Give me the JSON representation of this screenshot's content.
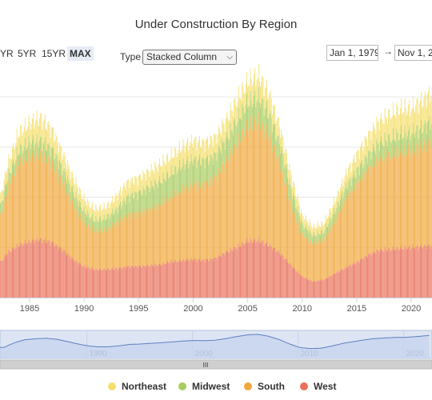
{
  "title": "Under Construction By Region",
  "range_buttons": [
    {
      "label": "YR",
      "active": false
    },
    {
      "label": "5YR",
      "active": false
    },
    {
      "label": "15YR",
      "active": false
    },
    {
      "label": "MAX",
      "active": true
    }
  ],
  "type_selector": {
    "label": "Type",
    "selected": "Stacked Column"
  },
  "date_range": {
    "from": "Jan 1, 1979",
    "arrow": "→",
    "to": "Nov 1, 2"
  },
  "navigator": {
    "handle": "III"
  },
  "chart_data": {
    "type": "bar",
    "stacked": true,
    "title": "Under Construction By Region",
    "xlabel": "",
    "ylabel": "",
    "legend_position": "bottom",
    "grid": true,
    "x_ticks": [
      "1985",
      "1990",
      "1995",
      "2000",
      "2005",
      "2010",
      "2015",
      "2020"
    ],
    "navigator_ticks": [
      "1990",
      "2000",
      "2010",
      "2020"
    ],
    "x_range": [
      1982.0,
      2022.3
    ],
    "colors": {
      "Northeast": "#f5df6e",
      "Midwest": "#a8cc60",
      "South": "#f0a83c",
      "West": "#e8705a"
    },
    "series": [
      {
        "name": "West",
        "color": "#e8705a",
        "values": [
          [
            1982.0,
            0.3
          ],
          [
            1983.0,
            0.45
          ],
          [
            1984.0,
            0.52
          ],
          [
            1985.0,
            0.56
          ],
          [
            1986.0,
            0.58
          ],
          [
            1987.0,
            0.55
          ],
          [
            1988.0,
            0.48
          ],
          [
            1989.0,
            0.38
          ],
          [
            1990.0,
            0.31
          ],
          [
            1991.0,
            0.28
          ],
          [
            1992.0,
            0.28
          ],
          [
            1993.0,
            0.29
          ],
          [
            1994.0,
            0.31
          ],
          [
            1995.0,
            0.31
          ],
          [
            1996.0,
            0.32
          ],
          [
            1997.0,
            0.33
          ],
          [
            1998.0,
            0.36
          ],
          [
            1999.0,
            0.37
          ],
          [
            2000.0,
            0.38
          ],
          [
            2001.0,
            0.37
          ],
          [
            2002.0,
            0.39
          ],
          [
            2003.0,
            0.45
          ],
          [
            2004.0,
            0.5
          ],
          [
            2005.0,
            0.56
          ],
          [
            2006.0,
            0.57
          ],
          [
            2007.0,
            0.52
          ],
          [
            2008.0,
            0.44
          ],
          [
            2009.0,
            0.32
          ],
          [
            2010.0,
            0.21
          ],
          [
            2011.0,
            0.16
          ],
          [
            2012.0,
            0.18
          ],
          [
            2013.0,
            0.24
          ],
          [
            2014.0,
            0.3
          ],
          [
            2015.0,
            0.35
          ],
          [
            2016.0,
            0.42
          ],
          [
            2017.0,
            0.47
          ],
          [
            2018.0,
            0.48
          ],
          [
            2019.0,
            0.49
          ],
          [
            2020.0,
            0.5
          ],
          [
            2021.0,
            0.51
          ],
          [
            2022.3,
            0.52
          ]
        ]
      },
      {
        "name": "South",
        "color": "#f0a83c",
        "values": [
          [
            1982.0,
            0.35
          ],
          [
            1983.0,
            0.63
          ],
          [
            1984.0,
            0.82
          ],
          [
            1985.0,
            0.85
          ],
          [
            1986.0,
            0.85
          ],
          [
            1987.0,
            0.8
          ],
          [
            1988.0,
            0.68
          ],
          [
            1989.0,
            0.55
          ],
          [
            1990.0,
            0.44
          ],
          [
            1991.0,
            0.38
          ],
          [
            1992.0,
            0.39
          ],
          [
            1993.0,
            0.45
          ],
          [
            1994.0,
            0.51
          ],
          [
            1995.0,
            0.53
          ],
          [
            1996.0,
            0.56
          ],
          [
            1997.0,
            0.6
          ],
          [
            1998.0,
            0.65
          ],
          [
            1999.0,
            0.71
          ],
          [
            2000.0,
            0.75
          ],
          [
            2001.0,
            0.76
          ],
          [
            2002.0,
            0.8
          ],
          [
            2003.0,
            0.9
          ],
          [
            2004.0,
            1.02
          ],
          [
            2005.0,
            1.14
          ],
          [
            2006.0,
            1.18
          ],
          [
            2007.0,
            1.08
          ],
          [
            2008.0,
            0.88
          ],
          [
            2009.0,
            0.6
          ],
          [
            2010.0,
            0.42
          ],
          [
            2011.0,
            0.38
          ],
          [
            2012.0,
            0.4
          ],
          [
            2013.0,
            0.52
          ],
          [
            2014.0,
            0.68
          ],
          [
            2015.0,
            0.77
          ],
          [
            2016.0,
            0.84
          ],
          [
            2017.0,
            0.9
          ],
          [
            2018.0,
            0.93
          ],
          [
            2019.0,
            0.96
          ],
          [
            2020.0,
            0.97
          ],
          [
            2021.0,
            1.0
          ],
          [
            2022.3,
            1.08
          ]
        ]
      },
      {
        "name": "Midwest",
        "color": "#a8cc60",
        "values": [
          [
            1982.0,
            0.1
          ],
          [
            1983.0,
            0.12
          ],
          [
            1984.0,
            0.12
          ],
          [
            1985.0,
            0.13
          ],
          [
            1986.0,
            0.13
          ],
          [
            1987.0,
            0.13
          ],
          [
            1988.0,
            0.13
          ],
          [
            1989.0,
            0.12
          ],
          [
            1990.0,
            0.11
          ],
          [
            1991.0,
            0.11
          ],
          [
            1992.0,
            0.12
          ],
          [
            1993.0,
            0.14
          ],
          [
            1994.0,
            0.18
          ],
          [
            1995.0,
            0.2
          ],
          [
            1996.0,
            0.22
          ],
          [
            1997.0,
            0.23
          ],
          [
            1998.0,
            0.23
          ],
          [
            1999.0,
            0.24
          ],
          [
            2000.0,
            0.24
          ],
          [
            2001.0,
            0.23
          ],
          [
            2002.0,
            0.22
          ],
          [
            2003.0,
            0.22
          ],
          [
            2004.0,
            0.24
          ],
          [
            2005.0,
            0.24
          ],
          [
            2006.0,
            0.24
          ],
          [
            2007.0,
            0.22
          ],
          [
            2008.0,
            0.19
          ],
          [
            2009.0,
            0.15
          ],
          [
            2010.0,
            0.1
          ],
          [
            2011.0,
            0.08
          ],
          [
            2012.0,
            0.08
          ],
          [
            2013.0,
            0.1
          ],
          [
            2014.0,
            0.12
          ],
          [
            2015.0,
            0.14
          ],
          [
            2016.0,
            0.15
          ],
          [
            2017.0,
            0.16
          ],
          [
            2018.0,
            0.17
          ],
          [
            2019.0,
            0.17
          ],
          [
            2020.0,
            0.17
          ],
          [
            2021.0,
            0.18
          ],
          [
            2022.3,
            0.2
          ]
        ]
      },
      {
        "name": "Northeast",
        "color": "#f5df6e",
        "values": [
          [
            1982.0,
            0.08
          ],
          [
            1983.0,
            0.13
          ],
          [
            1984.0,
            0.18
          ],
          [
            1985.0,
            0.2
          ],
          [
            1986.0,
            0.23
          ],
          [
            1987.0,
            0.2
          ],
          [
            1988.0,
            0.16
          ],
          [
            1989.0,
            0.14
          ],
          [
            1990.0,
            0.12
          ],
          [
            1991.0,
            0.11
          ],
          [
            1992.0,
            0.11
          ],
          [
            1993.0,
            0.13
          ],
          [
            1994.0,
            0.15
          ],
          [
            1995.0,
            0.15
          ],
          [
            1996.0,
            0.16
          ],
          [
            1997.0,
            0.17
          ],
          [
            1998.0,
            0.17
          ],
          [
            1999.0,
            0.18
          ],
          [
            2000.0,
            0.19
          ],
          [
            2001.0,
            0.18
          ],
          [
            2002.0,
            0.18
          ],
          [
            2003.0,
            0.19
          ],
          [
            2004.0,
            0.2
          ],
          [
            2005.0,
            0.21
          ],
          [
            2006.0,
            0.22
          ],
          [
            2007.0,
            0.2
          ],
          [
            2008.0,
            0.17
          ],
          [
            2009.0,
            0.14
          ],
          [
            2010.0,
            0.09
          ],
          [
            2011.0,
            0.08
          ],
          [
            2012.0,
            0.08
          ],
          [
            2013.0,
            0.1
          ],
          [
            2014.0,
            0.13
          ],
          [
            2015.0,
            0.16
          ],
          [
            2016.0,
            0.19
          ],
          [
            2017.0,
            0.22
          ],
          [
            2018.0,
            0.24
          ],
          [
            2019.0,
            0.26
          ],
          [
            2020.0,
            0.25
          ],
          [
            2021.0,
            0.27
          ],
          [
            2022.3,
            0.3
          ]
        ]
      }
    ]
  }
}
